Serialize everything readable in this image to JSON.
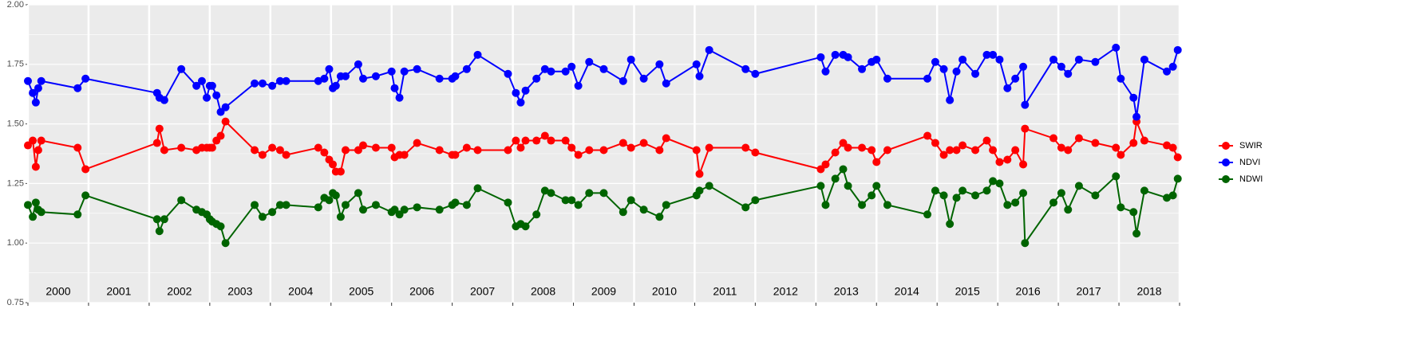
{
  "chart_data": {
    "type": "line",
    "xlim": [
      2000,
      2019
    ],
    "xticks": [
      2000,
      2001,
      2002,
      2003,
      2004,
      2005,
      2006,
      2007,
      2008,
      2009,
      2010,
      2011,
      2012,
      2013,
      2014,
      2015,
      2016,
      2017,
      2018,
      2019
    ],
    "periods": [
      "2000",
      "2001",
      "2002",
      "2003",
      "2004",
      "2005",
      "2006",
      "2007",
      "2008",
      "2009",
      "2010",
      "2011",
      "2012",
      "2013",
      "2014",
      "2015",
      "2016",
      "2017",
      "2018"
    ],
    "ylim": [
      0.75,
      2.0
    ],
    "yticks": [
      0.75,
      {
        "value": 1.0,
        "label": "1.00"
      },
      1.25,
      {
        "value": 1.5,
        "label": "1.50"
      },
      1.75,
      {
        "value": 2.0,
        "label": "2.00"
      }
    ],
    "grid": true,
    "legend": "right",
    "x": [
      2000.0,
      2000.08,
      2000.13,
      2000.17,
      2000.22,
      2000.82,
      2000.95,
      2002.13,
      2002.17,
      2002.25,
      2002.53,
      2002.78,
      2002.87,
      2002.95,
      2003.0,
      2003.04,
      2003.11,
      2003.18,
      2003.26,
      2003.74,
      2003.87,
      2004.03,
      2004.16,
      2004.26,
      2004.79,
      2004.89,
      2004.97,
      2005.03,
      2005.08,
      2005.16,
      2005.24,
      2005.45,
      2005.53,
      2005.74,
      2006.0,
      2006.05,
      2006.13,
      2006.21,
      2006.42,
      2006.79,
      2007.0,
      2007.05,
      2007.24,
      2007.42,
      2007.92,
      2008.05,
      2008.13,
      2008.21,
      2008.39,
      2008.53,
      2008.63,
      2008.87,
      2008.97,
      2009.08,
      2009.26,
      2009.5,
      2009.82,
      2009.95,
      2010.16,
      2010.42,
      2010.53,
      2011.03,
      2011.08,
      2011.24,
      2011.84,
      2012.0,
      2013.08,
      2013.16,
      2013.32,
      2013.45,
      2013.53,
      2013.76,
      2013.92,
      2014.0,
      2014.18,
      2014.84,
      2014.97,
      2015.11,
      2015.21,
      2015.32,
      2015.42,
      2015.63,
      2015.82,
      2015.92,
      2016.03,
      2016.16,
      2016.29,
      2016.42,
      2016.45,
      2016.92,
      2017.05,
      2017.16,
      2017.34,
      2017.61,
      2017.95,
      2018.03,
      2018.24,
      2018.29,
      2018.42,
      2018.79,
      2018.89,
      2018.97
    ],
    "series": [
      {
        "name": "SWIR",
        "color": "#ff0000",
        "values": [
          1.41,
          1.43,
          1.32,
          1.39,
          1.43,
          1.4,
          1.31,
          1.42,
          1.48,
          1.39,
          1.4,
          1.39,
          1.4,
          1.4,
          1.4,
          1.4,
          1.43,
          1.45,
          1.51,
          1.39,
          1.37,
          1.4,
          1.39,
          1.37,
          1.4,
          1.38,
          1.35,
          1.33,
          1.3,
          1.3,
          1.39,
          1.39,
          1.41,
          1.4,
          1.4,
          1.36,
          1.37,
          1.37,
          1.42,
          1.39,
          1.37,
          1.37,
          1.4,
          1.39,
          1.39,
          1.43,
          1.4,
          1.43,
          1.43,
          1.45,
          1.43,
          1.43,
          1.4,
          1.37,
          1.39,
          1.39,
          1.42,
          1.4,
          1.42,
          1.39,
          1.44,
          1.39,
          1.29,
          1.4,
          1.4,
          1.38,
          1.31,
          1.33,
          1.38,
          1.42,
          1.4,
          1.4,
          1.39,
          1.34,
          1.39,
          1.45,
          1.42,
          1.37,
          1.39,
          1.39,
          1.41,
          1.39,
          1.43,
          1.39,
          1.34,
          1.35,
          1.39,
          1.33,
          1.48,
          1.44,
          1.4,
          1.39,
          1.44,
          1.42,
          1.4,
          1.37,
          1.42,
          1.51,
          1.43,
          1.41,
          1.4,
          1.36
        ]
      },
      {
        "name": "NDVI",
        "color": "#0000ff",
        "values": [
          1.68,
          1.63,
          1.59,
          1.65,
          1.68,
          1.65,
          1.69,
          1.63,
          1.61,
          1.6,
          1.73,
          1.66,
          1.68,
          1.61,
          1.66,
          1.66,
          1.62,
          1.55,
          1.57,
          1.67,
          1.67,
          1.66,
          1.68,
          1.68,
          1.68,
          1.69,
          1.73,
          1.65,
          1.66,
          1.7,
          1.7,
          1.75,
          1.69,
          1.7,
          1.72,
          1.65,
          1.61,
          1.72,
          1.73,
          1.69,
          1.69,
          1.7,
          1.73,
          1.79,
          1.71,
          1.63,
          1.59,
          1.64,
          1.69,
          1.73,
          1.72,
          1.72,
          1.74,
          1.66,
          1.76,
          1.73,
          1.68,
          1.77,
          1.69,
          1.75,
          1.67,
          1.75,
          1.7,
          1.81,
          1.73,
          1.71,
          1.78,
          1.72,
          1.79,
          1.79,
          1.78,
          1.73,
          1.76,
          1.77,
          1.69,
          1.69,
          1.76,
          1.73,
          1.6,
          1.72,
          1.77,
          1.71,
          1.79,
          1.79,
          1.77,
          1.65,
          1.69,
          1.74,
          1.58,
          1.77,
          1.74,
          1.71,
          1.77,
          1.76,
          1.82,
          1.69,
          1.61,
          1.53,
          1.77,
          1.72,
          1.74,
          1.81
        ]
      },
      {
        "name": "NDWI",
        "color": "#006400",
        "values": [
          1.16,
          1.11,
          1.17,
          1.14,
          1.13,
          1.12,
          1.2,
          1.1,
          1.05,
          1.1,
          1.18,
          1.14,
          1.13,
          1.12,
          1.1,
          1.09,
          1.08,
          1.07,
          1.0,
          1.16,
          1.11,
          1.13,
          1.16,
          1.16,
          1.15,
          1.19,
          1.18,
          1.21,
          1.2,
          1.11,
          1.16,
          1.21,
          1.14,
          1.16,
          1.13,
          1.14,
          1.12,
          1.14,
          1.15,
          1.14,
          1.16,
          1.17,
          1.16,
          1.23,
          1.17,
          1.07,
          1.08,
          1.07,
          1.12,
          1.22,
          1.21,
          1.18,
          1.18,
          1.16,
          1.21,
          1.21,
          1.13,
          1.18,
          1.14,
          1.11,
          1.16,
          1.2,
          1.22,
          1.24,
          1.15,
          1.18,
          1.24,
          1.16,
          1.27,
          1.31,
          1.24,
          1.16,
          1.2,
          1.24,
          1.16,
          1.12,
          1.22,
          1.2,
          1.08,
          1.19,
          1.22,
          1.2,
          1.22,
          1.26,
          1.25,
          1.16,
          1.17,
          1.21,
          1.0,
          1.17,
          1.21,
          1.14,
          1.24,
          1.2,
          1.28,
          1.15,
          1.13,
          1.04,
          1.22,
          1.19,
          1.2,
          1.27
        ]
      }
    ]
  }
}
